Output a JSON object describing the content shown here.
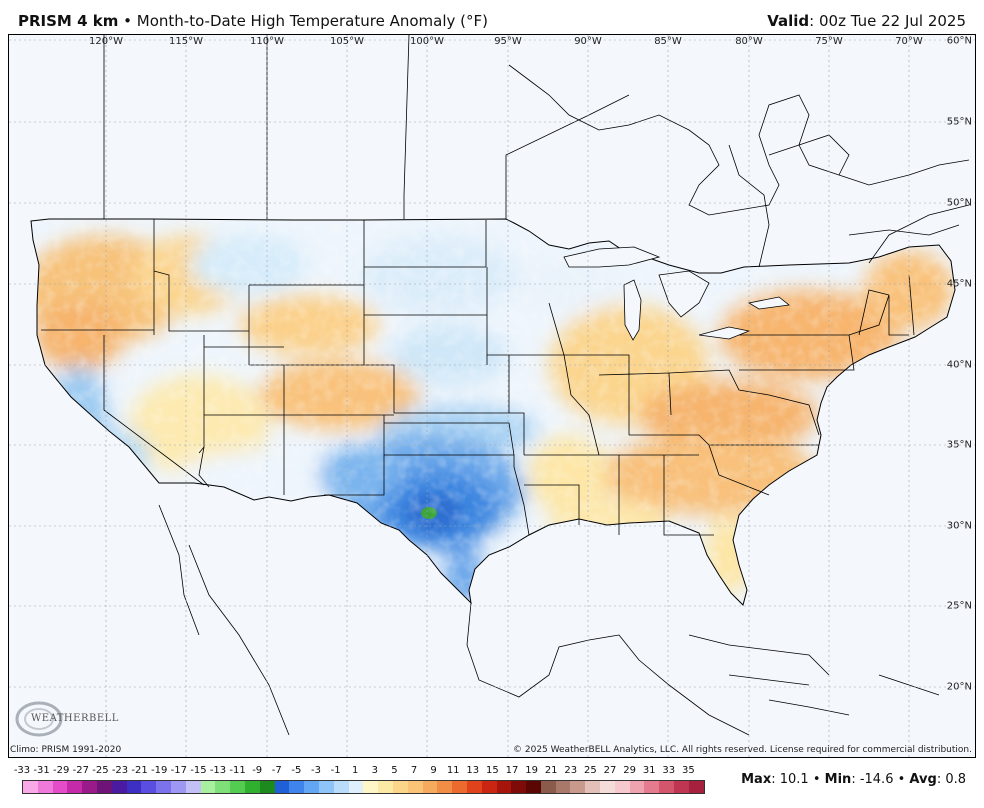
{
  "header": {
    "product": "PRISM 4 km",
    "separator": "•",
    "title": "Month-to-Date High Temperature Anomaly (°F)",
    "valid_label": "Valid",
    "valid_value": ": 00z Tue 22 Jul 2025"
  },
  "map": {
    "longitude_labels": [
      "120°W",
      "115°W",
      "110°W",
      "105°W",
      "100°W",
      "95°W",
      "90°W",
      "85°W",
      "80°W",
      "75°W",
      "70°W"
    ],
    "latitude_labels": [
      "60°N",
      "55°N",
      "50°N",
      "45°N",
      "40°N",
      "35°N",
      "30°N",
      "25°N",
      "20°N"
    ],
    "colors": {
      "ocean": "#f4f8fd",
      "warm_light": "#fde9a6",
      "warm_mid": "#f9c478",
      "warm_strong": "#f3a865",
      "cool_light": "#bfe3f7",
      "cool_mid": "#7db8ee",
      "cool_strong": "#3d86e0",
      "cool_deep": "#2e6fd2",
      "green": "#3aa33a"
    }
  },
  "logo": {
    "text": "WEATHERBELL"
  },
  "footer": {
    "climo": "Climo: PRISM 1991-2020",
    "copyright": "© 2025 WeatherBELL Analytics, LLC. All rights reserved. License required for commercial distribution."
  },
  "scale": {
    "labels": [
      "-33",
      "-31",
      "-29",
      "-27",
      "-25",
      "-23",
      "-21",
      "-19",
      "-17",
      "-15",
      "-13",
      "-11",
      "-9",
      "-7",
      "-5",
      "-3",
      "-1",
      "1",
      "3",
      "5",
      "7",
      "9",
      "11",
      "13",
      "15",
      "17",
      "19",
      "21",
      "23",
      "25",
      "27",
      "29",
      "31",
      "33",
      "35"
    ],
    "colors": [
      "#f9a8e8",
      "#f07ad9",
      "#e44cc8",
      "#c52aa8",
      "#9a1a8a",
      "#6e1478",
      "#4a1aa0",
      "#3d2fc4",
      "#5a4ee0",
      "#7b72ec",
      "#9f98f2",
      "#c3bff7",
      "#a8f0a0",
      "#7fe07a",
      "#54cc52",
      "#2fb02f",
      "#1c8a1c",
      "#1f5fd8",
      "#3e84ec",
      "#63a6f3",
      "#8ec4f7",
      "#b9dcfa",
      "#dff0fc",
      "#fff6c8",
      "#fde9a6",
      "#fbd58a",
      "#f9c478",
      "#f5ab5e",
      "#f18d45",
      "#eb6a2e",
      "#e0421c",
      "#c92512",
      "#a7140c",
      "#7e0b07",
      "#5a0603",
      "#8a5a4a",
      "#a8786a",
      "#c89a8e",
      "#e2bfb8",
      "#f4dcd8",
      "#f7c9cf",
      "#efa3b0",
      "#e47b8e",
      "#d4566d",
      "#c03552",
      "#a5213e"
    ],
    "max_label": "Max",
    "max_value": ": 10.1",
    "min_label": "Min",
    "min_value": ": -14.6",
    "avg_label": "Avg",
    "avg_value": ": 0.8",
    "sep": "•"
  }
}
